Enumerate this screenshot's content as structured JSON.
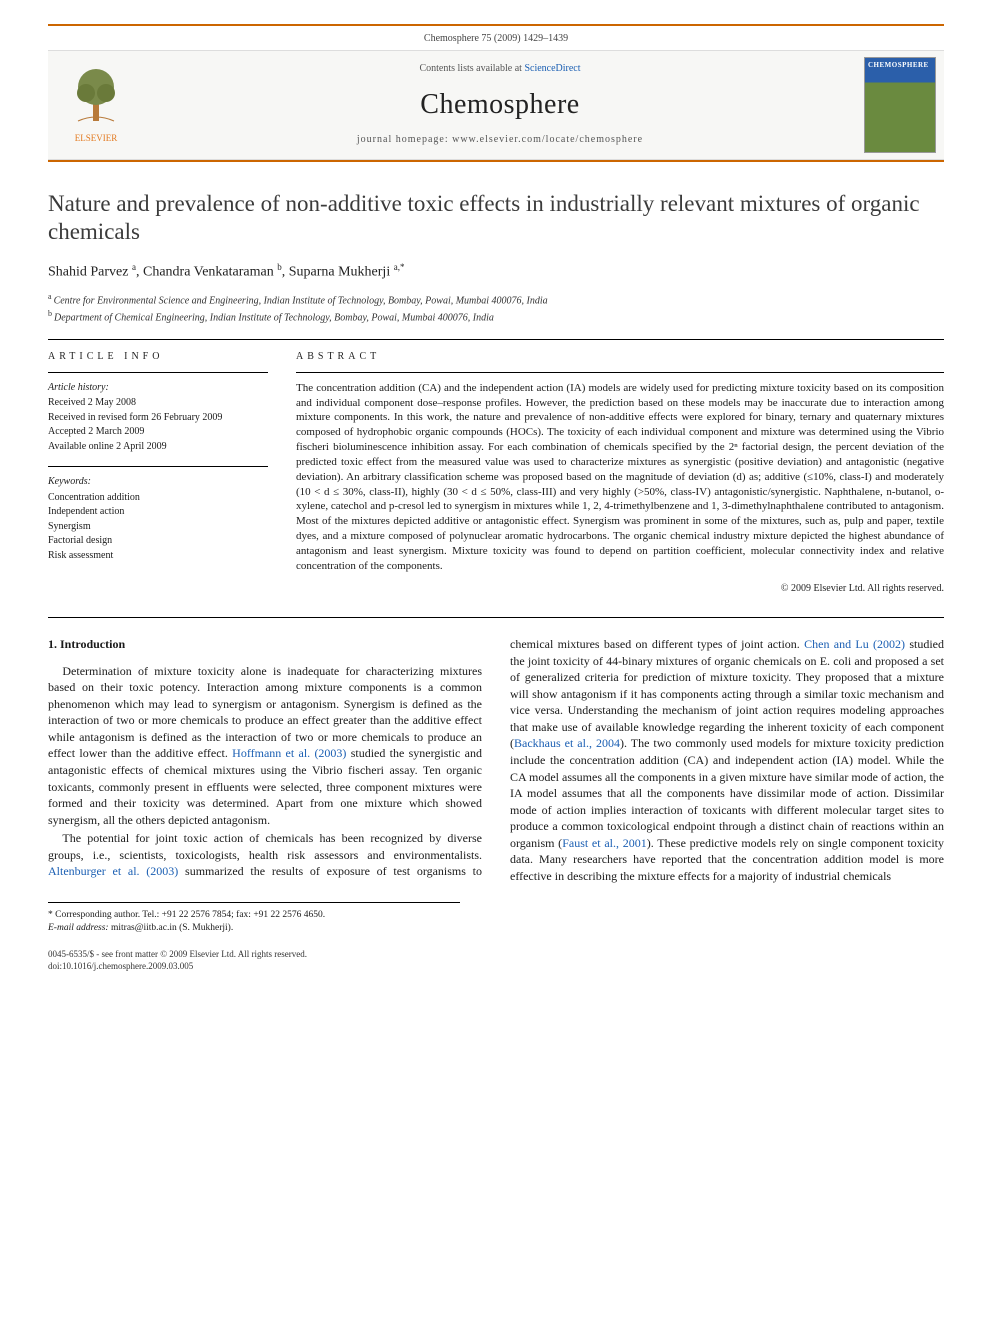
{
  "citation": "Chemosphere 75 (2009) 1429–1439",
  "header": {
    "publisher_name": "ELSEVIER",
    "contents_prefix": "Contents lists available at ",
    "contents_link": "ScienceDirect",
    "journal_name": "Chemosphere",
    "homepage_label": "journal homepage: ",
    "homepage_url": "www.elsevier.com/locate/chemosphere",
    "cover_title": "CHEMOSPHERE",
    "accent_color": "#cc6600",
    "link_color": "#1b5fb3"
  },
  "article": {
    "title": "Nature and prevalence of non-additive toxic effects in industrially relevant mixtures of organic chemicals",
    "authors_html": "Shahid Parvez <sup>a</sup>, Chandra Venkataraman <sup>b</sup>, Suparna Mukherji <sup>a,*</sup>",
    "affiliations": [
      {
        "marker": "a",
        "text": "Centre for Environmental Science and Engineering, Indian Institute of Technology, Bombay, Powai, Mumbai 400076, India"
      },
      {
        "marker": "b",
        "text": "Department of Chemical Engineering, Indian Institute of Technology, Bombay, Powai, Mumbai 400076, India"
      }
    ]
  },
  "info": {
    "label": "ARTICLE INFO",
    "history_head": "Article history:",
    "history": [
      "Received 2 May 2008",
      "Received in revised form 26 February 2009",
      "Accepted 2 March 2009",
      "Available online 2 April 2009"
    ],
    "keywords_head": "Keywords:",
    "keywords": [
      "Concentration addition",
      "Independent action",
      "Synergism",
      "Factorial design",
      "Risk assessment"
    ]
  },
  "abstract": {
    "label": "ABSTRACT",
    "text": "The concentration addition (CA) and the independent action (IA) models are widely used for predicting mixture toxicity based on its composition and individual component dose–response profiles. However, the prediction based on these models may be inaccurate due to interaction among mixture components. In this work, the nature and prevalence of non-additive effects were explored for binary, ternary and quaternary mixtures composed of hydrophobic organic compounds (HOCs). The toxicity of each individual component and mixture was determined using the Vibrio fischeri bioluminescence inhibition assay. For each combination of chemicals specified by the 2ⁿ factorial design, the percent deviation of the predicted toxic effect from the measured value was used to characterize mixtures as synergistic (positive deviation) and antagonistic (negative deviation). An arbitrary classification scheme was proposed based on the magnitude of deviation (d) as; additive (≤10%, class-I) and moderately (10 < d ≤ 30%, class-II), highly (30 < d ≤ 50%, class-III) and very highly (>50%, class-IV) antagonistic/synergistic. Naphthalene, n-butanol, o-xylene, catechol and p-cresol led to synergism in mixtures while 1, 2, 4-trimethylbenzene and 1, 3-dimethylnaphthalene contributed to antagonism. Most of the mixtures depicted additive or antagonistic effect. Synergism was prominent in some of the mixtures, such as, pulp and paper, textile dyes, and a mixture composed of polynuclear aromatic hydrocarbons. The organic chemical industry mixture depicted the highest abundance of antagonism and least synergism. Mixture toxicity was found to depend on partition coefficient, molecular connectivity index and relative concentration of the components.",
    "copyright": "© 2009 Elsevier Ltd. All rights reserved."
  },
  "body": {
    "heading": "1. Introduction",
    "p1": "Determination of mixture toxicity alone is inadequate for characterizing mixtures based on their toxic potency. Interaction among mixture components is a common phenomenon which may lead to synergism or antagonism. Synergism is defined as the interaction of two or more chemicals to produce an effect greater than the additive effect while antagonism is defined as the interaction of two or more chemicals to produce an effect lower than the additive effect. ",
    "p1_ref": "Hoffmann et al. (2003)",
    "p1b": " studied the synergistic and antagonistic effects of chemical mixtures using the Vibrio fischeri assay. Ten organic toxicants, commonly present in effluents were selected, three component mixtures were formed and their toxicity was determined. Apart from one mixture which showed synergism, all the others depicted antagonism.",
    "p2": "The potential for joint toxic action of chemicals has been recognized by diverse groups, i.e., scientists, toxicologists, health risk assessors and environmentalists. ",
    "p2_ref": "Altenburger et al. (2003)",
    "p2b": " summarized the results of exposure of test organisms to chemical mixtures based on different types of joint action. ",
    "p2_ref2": "Chen and Lu (2002)",
    "p2c": " studied the joint toxicity of 44-binary mixtures of organic chemicals on E. coli and proposed a set of generalized criteria for prediction of mixture toxicity. They proposed that a mixture will show antagonism if it has components acting through a similar toxic mechanism and vice versa. Understanding the mechanism of joint action requires modeling approaches that make use of available knowledge regarding the inherent toxicity of each component (",
    "p2_ref3": "Backhaus et al., 2004",
    "p2d": "). The two commonly used models for mixture toxicity prediction include the concentration addition (CA) and independent action (IA) model. While the CA model assumes all the components in a given mixture have similar mode of action, the IA model assumes that all the components have dissimilar mode of action. Dissimilar mode of action implies interaction of toxicants with different molecular target sites to produce a common toxicological endpoint through a distinct chain of reactions within an organism (",
    "p2_ref4": "Faust et al., 2001",
    "p2e": "). These predictive models rely on single component toxicity data. Many researchers have reported that the concentration addition model is more effective in describing the mixture effects for a majority of industrial chemicals"
  },
  "footnote": {
    "corr_label": "* Corresponding author. ",
    "corr_text": "Tel.: +91 22 2576 7854; fax: +91 22 2576 4650.",
    "email_label": "E-mail address:",
    "email": "mitras@iitb.ac.in",
    "email_who": "(S. Mukherji)."
  },
  "footer": {
    "line1": "0045-6535/$ - see front matter © 2009 Elsevier Ltd. All rights reserved.",
    "line2": "doi:10.1016/j.chemosphere.2009.03.005"
  }
}
